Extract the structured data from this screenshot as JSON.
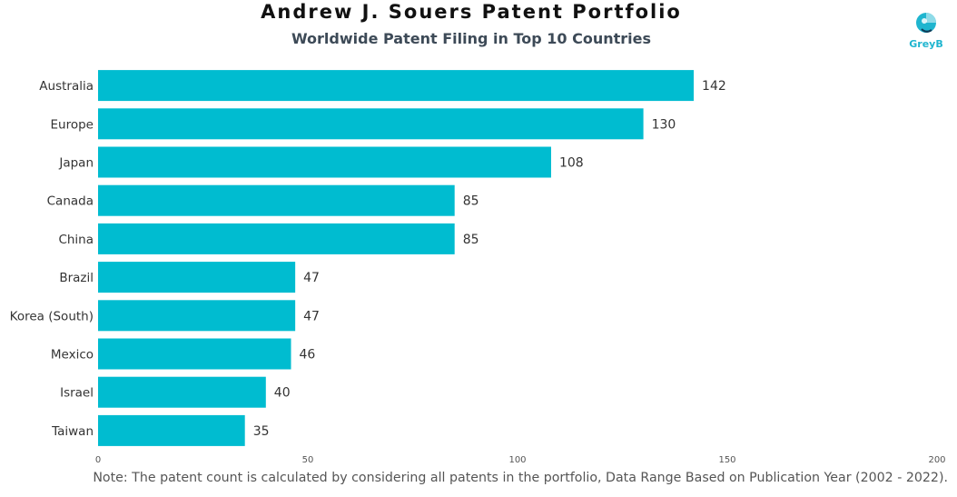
{
  "header": {
    "title": "Andrew J. Souers Patent Portfolio",
    "subtitle": "Worldwide Patent Filing in Top 10 Countries"
  },
  "logo": {
    "text": "GreyB",
    "color": "#1fb5cf"
  },
  "note": "Note: The patent count is calculated by considering all patents in the portfolio, Data Range Based on Publication Year (2002 - 2022).",
  "colors": {
    "bar": "#00bcd0",
    "label": "#333333"
  },
  "chart_data": {
    "type": "bar",
    "orientation": "horizontal",
    "title": "Andrew J. Souers Patent Portfolio",
    "subtitle": "Worldwide Patent Filing in Top 10 Countries",
    "categories": [
      "Australia",
      "Europe",
      "Japan",
      "Canada",
      "China",
      "Brazil",
      "Korea (South)",
      "Mexico",
      "Israel",
      "Taiwan"
    ],
    "values": [
      142,
      130,
      108,
      85,
      85,
      47,
      47,
      46,
      40,
      35
    ],
    "xlim": [
      0,
      200
    ],
    "xticks": [
      0,
      50,
      100,
      150,
      200
    ],
    "grid": false,
    "data_labels": true
  }
}
